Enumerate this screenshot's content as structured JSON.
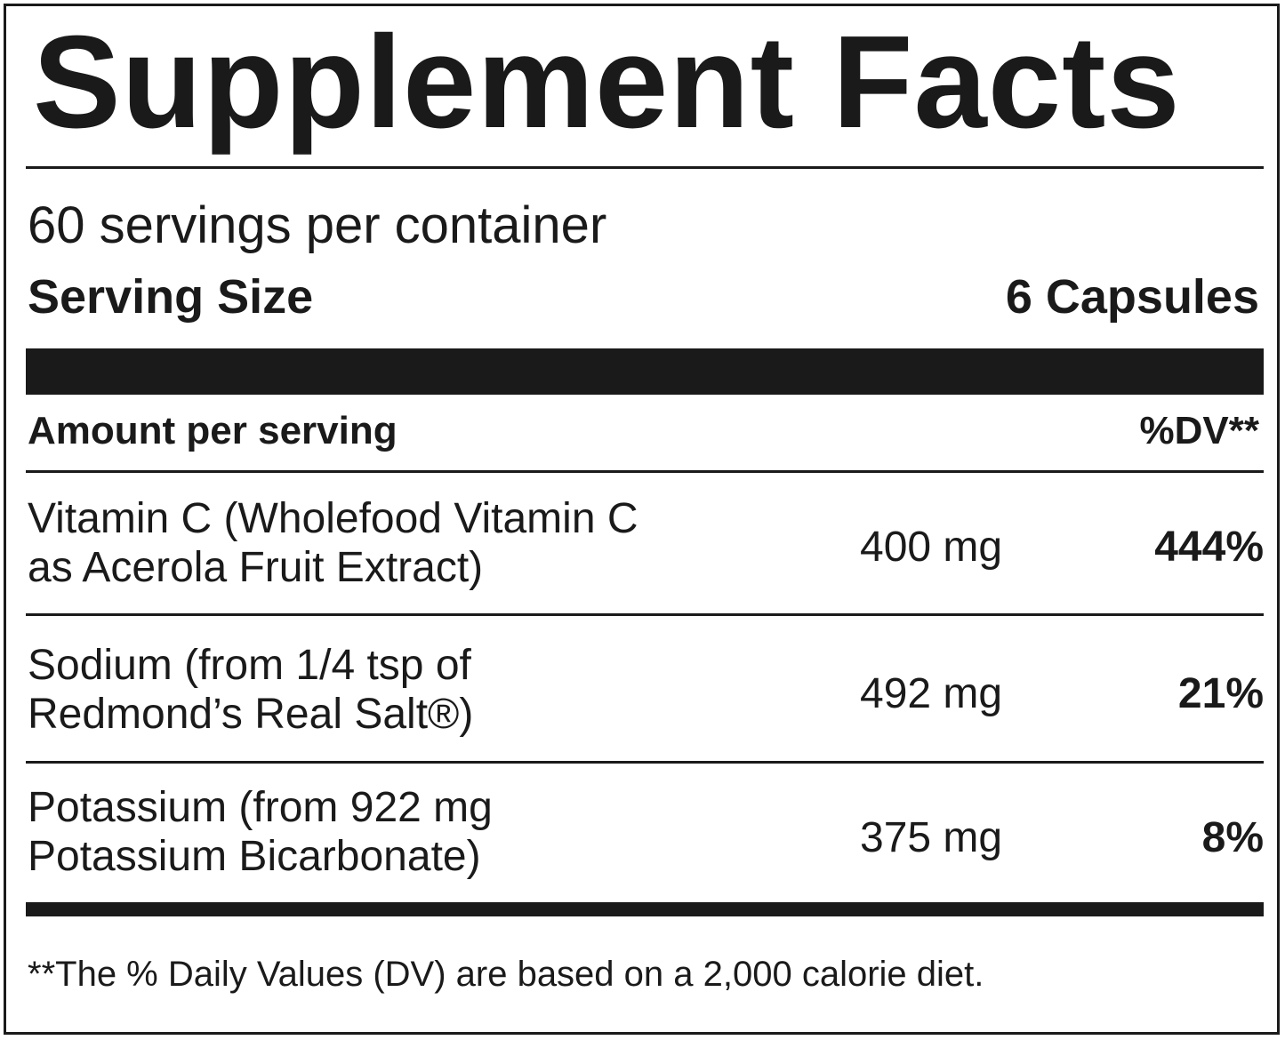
{
  "label": {
    "title": "Supplement Facts",
    "servings_per_container": "60 servings per container",
    "serving_size_label": "Serving Size",
    "serving_size_value": "6 Capsules",
    "amount_header": "Amount per serving",
    "dv_header": "%DV**",
    "nutrients": [
      {
        "name_line1": "Vitamin C (Wholefood Vitamin C",
        "name_line2": "as Acerola Fruit Extract)",
        "amount": "400 mg",
        "dv": "444%"
      },
      {
        "name_line1": "Sodium (from 1/4 tsp of",
        "name_line2": "Redmond’s Real Salt®)",
        "amount": "492 mg",
        "dv": "21%"
      },
      {
        "name_line1": "Potassium (from 922 mg",
        "name_line2": "Potassium Bicarbonate)",
        "amount": "375 mg",
        "dv": "8%"
      }
    ],
    "footnote": "**The % Daily Values (DV) are based on a 2,000 calorie diet."
  },
  "colors": {
    "ink": "#1a1a1a",
    "background": "#ffffff"
  }
}
